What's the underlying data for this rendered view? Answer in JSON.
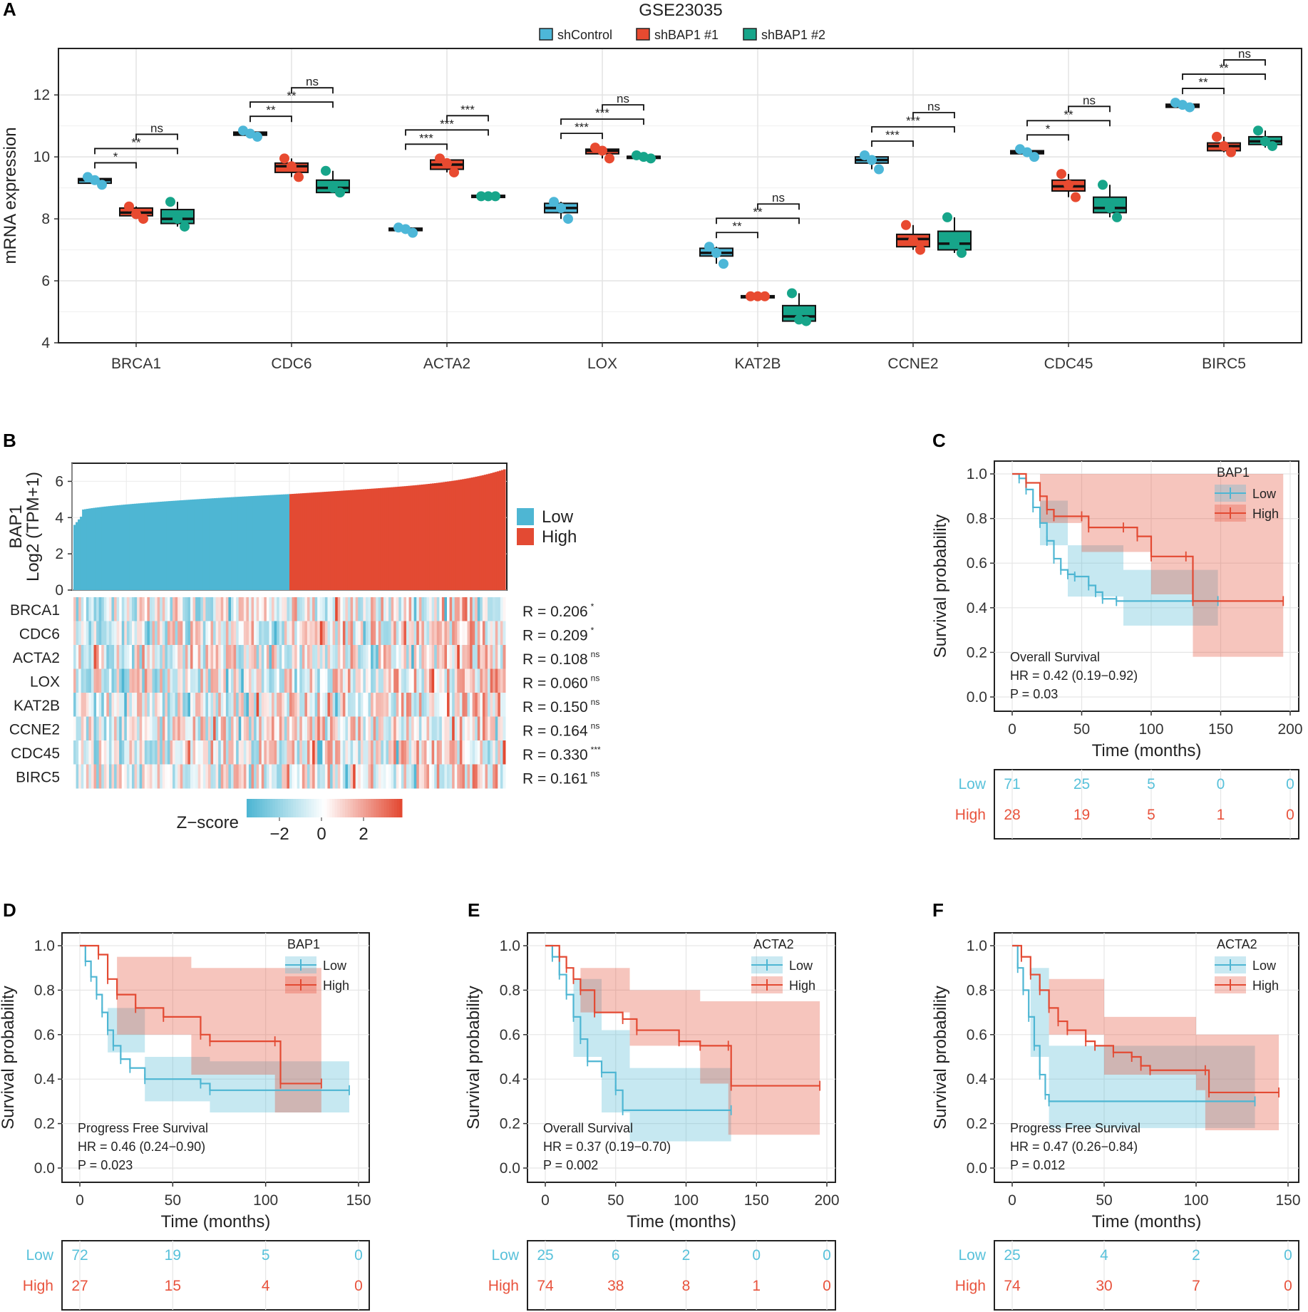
{
  "colors": {
    "low": "#4eb6d3",
    "low_fill": "#bfe4ee",
    "high": "#e34a33",
    "high_fill": "#f4b3a7",
    "shControl": "#4db7d8",
    "shBAP1_1": "#e84a30",
    "shBAP1_2": "#17a58a"
  },
  "panel_labels": [
    "A",
    "B",
    "C",
    "D",
    "E",
    "F"
  ],
  "chart_data": [
    {
      "panel": "A",
      "type": "box",
      "title": "GSE23035",
      "legend": [
        "shControl",
        "shBAP1 #1",
        "shBAP1 #2"
      ],
      "ylabel": "mRNA expression",
      "ylim": [
        4,
        13.5
      ],
      "yticks": [
        4,
        6,
        8,
        10,
        12
      ],
      "genes": [
        {
          "name": "BRCA1",
          "groups": [
            {
              "q1": 9.15,
              "med": 9.25,
              "q3": 9.3,
              "min": 9.1,
              "max": 9.35,
              "pts": [
                9.35,
                9.25,
                9.1
              ]
            },
            {
              "q1": 8.1,
              "med": 8.2,
              "q3": 8.35,
              "min": 8.0,
              "max": 8.4,
              "pts": [
                8.4,
                8.15,
                8.0
              ]
            },
            {
              "q1": 7.85,
              "med": 8.0,
              "q3": 8.3,
              "min": 7.75,
              "max": 8.55,
              "pts": [
                8.55,
                8.0,
                7.75
              ]
            }
          ],
          "sig": [
            "*",
            "**",
            "ns"
          ]
        },
        {
          "name": "CDC6",
          "groups": [
            {
              "q1": 10.7,
              "med": 10.75,
              "q3": 10.8,
              "min": 10.65,
              "max": 10.85,
              "pts": [
                10.85,
                10.75,
                10.65
              ]
            },
            {
              "q1": 9.5,
              "med": 9.7,
              "q3": 9.8,
              "min": 9.35,
              "max": 9.95,
              "pts": [
                9.95,
                9.7,
                9.35
              ]
            },
            {
              "q1": 8.85,
              "med": 9.0,
              "q3": 9.25,
              "min": 8.85,
              "max": 9.55,
              "pts": [
                9.55,
                9.0,
                8.85
              ]
            }
          ],
          "sig": [
            "**",
            "**",
            "ns"
          ]
        },
        {
          "name": "ACTA2",
          "groups": [
            {
              "q1": 7.62,
              "med": 7.67,
              "q3": 7.7,
              "min": 7.55,
              "max": 7.72,
              "pts": [
                7.72,
                7.67,
                7.55
              ]
            },
            {
              "q1": 9.6,
              "med": 9.75,
              "q3": 9.9,
              "min": 9.5,
              "max": 9.95,
              "pts": [
                9.95,
                9.8,
                9.5
              ]
            },
            {
              "q1": 8.7,
              "med": 8.73,
              "q3": 8.76,
              "min": 8.7,
              "max": 8.76,
              "pts": [
                8.73,
                8.73,
                8.73
              ]
            }
          ],
          "sig": [
            "***",
            "***",
            "***"
          ]
        },
        {
          "name": "LOX",
          "groups": [
            {
              "q1": 8.2,
              "med": 8.35,
              "q3": 8.5,
              "min": 8.0,
              "max": 8.55,
              "pts": [
                8.55,
                8.35,
                8.0
              ]
            },
            {
              "q1": 10.1,
              "med": 10.2,
              "q3": 10.25,
              "min": 9.95,
              "max": 10.3,
              "pts": [
                10.3,
                10.2,
                9.95
              ]
            },
            {
              "q1": 9.95,
              "med": 10.0,
              "q3": 10.02,
              "min": 9.95,
              "max": 10.05,
              "pts": [
                10.05,
                10.0,
                9.95
              ]
            }
          ],
          "sig": [
            "***",
            "***",
            "ns"
          ]
        },
        {
          "name": "KAT2B",
          "groups": [
            {
              "q1": 6.8,
              "med": 6.9,
              "q3": 7.05,
              "min": 6.55,
              "max": 7.1,
              "pts": [
                7.1,
                6.9,
                6.55
              ]
            },
            {
              "q1": 5.48,
              "med": 5.5,
              "q3": 5.52,
              "min": 5.48,
              "max": 5.52,
              "pts": [
                5.5,
                5.5,
                5.5
              ]
            },
            {
              "q1": 4.7,
              "med": 4.85,
              "q3": 5.2,
              "min": 4.7,
              "max": 5.6,
              "pts": [
                5.6,
                4.75,
                4.7
              ]
            }
          ],
          "sig": [
            "**",
            "**",
            "ns"
          ]
        },
        {
          "name": "CCNE2",
          "groups": [
            {
              "q1": 9.8,
              "med": 9.9,
              "q3": 10.0,
              "min": 9.6,
              "max": 10.05,
              "pts": [
                10.05,
                9.9,
                9.6
              ]
            },
            {
              "q1": 7.1,
              "med": 7.35,
              "q3": 7.5,
              "min": 7.0,
              "max": 7.8,
              "pts": [
                7.8,
                7.3,
                7.0
              ]
            },
            {
              "q1": 7.0,
              "med": 7.2,
              "q3": 7.6,
              "min": 6.9,
              "max": 8.05,
              "pts": [
                8.05,
                7.2,
                6.9
              ]
            }
          ],
          "sig": [
            "***",
            "***",
            "ns"
          ]
        },
        {
          "name": "CDC45",
          "groups": [
            {
              "q1": 10.1,
              "med": 10.15,
              "q3": 10.2,
              "min": 10.0,
              "max": 10.25,
              "pts": [
                10.25,
                10.15,
                10.0
              ]
            },
            {
              "q1": 8.9,
              "med": 9.05,
              "q3": 9.25,
              "min": 8.7,
              "max": 9.45,
              "pts": [
                9.45,
                9.1,
                8.7
              ]
            },
            {
              "q1": 8.2,
              "med": 8.35,
              "q3": 8.7,
              "min": 8.05,
              "max": 9.1,
              "pts": [
                9.1,
                8.35,
                8.05
              ]
            }
          ],
          "sig": [
            "*",
            "**",
            "ns"
          ]
        },
        {
          "name": "BIRC5",
          "groups": [
            {
              "q1": 11.6,
              "med": 11.65,
              "q3": 11.7,
              "min": 11.6,
              "max": 11.75,
              "pts": [
                11.75,
                11.68,
                11.6
              ]
            },
            {
              "q1": 10.2,
              "med": 10.35,
              "q3": 10.45,
              "min": 10.15,
              "max": 10.65,
              "pts": [
                10.65,
                10.35,
                10.15
              ]
            },
            {
              "q1": 10.4,
              "med": 10.5,
              "q3": 10.65,
              "min": 10.3,
              "max": 10.85,
              "pts": [
                10.85,
                10.5,
                10.35
              ]
            }
          ],
          "sig": [
            "**",
            "**",
            "ns"
          ]
        }
      ]
    },
    {
      "panel": "B",
      "type": "bar+heatmap",
      "ylabel_line1": "BAP1",
      "ylabel_line2": "Log2 (TPM+1)",
      "ylim": [
        0,
        7
      ],
      "yticks": [
        0,
        2,
        4,
        6
      ],
      "legend": [
        "Low",
        "High"
      ],
      "low_range": [
        3.6,
        5.3
      ],
      "high_range": [
        5.3,
        6.7
      ],
      "genes": [
        "BRCA1",
        "CDC6",
        "ACTA2",
        "LOX",
        "KAT2B",
        "CCNE2",
        "CDC45",
        "BIRC5"
      ],
      "correlations": [
        "R = 0.206",
        "R = 0.209",
        "R = 0.108",
        "R = 0.060",
        "R = 0.150",
        "R = 0.164",
        "R = 0.330",
        "R = 0.161"
      ],
      "sig": [
        "*",
        "*",
        "ns",
        "ns",
        "ns",
        "ns",
        "***",
        "ns"
      ],
      "colorbar_title": "Z−score",
      "colorbar_ticks": [
        "−2",
        "0",
        "2"
      ]
    }
  ],
  "km_plots": [
    {
      "panel": "C",
      "strata": "BAP1",
      "survival_type": "Overall Survival",
      "hr": "HR = 0.42 (0.19−0.92)",
      "p": "P = 0.03",
      "xmax": 200,
      "xticks": [
        0,
        50,
        100,
        150,
        200
      ],
      "xlabel": "Time (months)",
      "ylabel": "Survival probability",
      "risk_low": [
        "71",
        "25",
        "5",
        "0",
        "0"
      ],
      "risk_high": [
        "28",
        "19",
        "5",
        "1",
        "0"
      ],
      "low": [
        [
          0,
          1
        ],
        [
          5,
          0.98
        ],
        [
          10,
          0.93
        ],
        [
          15,
          0.85
        ],
        [
          20,
          0.78
        ],
        [
          25,
          0.7
        ],
        [
          30,
          0.62
        ],
        [
          35,
          0.57
        ],
        [
          40,
          0.55
        ],
        [
          45,
          0.54
        ],
        [
          55,
          0.5
        ],
        [
          60,
          0.47
        ],
        [
          65,
          0.44
        ],
        [
          75,
          0.43
        ],
        [
          148,
          0.43
        ]
      ],
      "high": [
        [
          0,
          1
        ],
        [
          10,
          0.96
        ],
        [
          20,
          0.9
        ],
        [
          25,
          0.84
        ],
        [
          30,
          0.81
        ],
        [
          50,
          0.81
        ],
        [
          55,
          0.76
        ],
        [
          80,
          0.76
        ],
        [
          90,
          0.72
        ],
        [
          100,
          0.63
        ],
        [
          125,
          0.63
        ],
        [
          130,
          0.43
        ],
        [
          195,
          0.43
        ]
      ],
      "low_ci": [
        [
          0,
          1,
          1
        ],
        [
          20,
          0.88,
          0.68
        ],
        [
          40,
          0.68,
          0.45
        ],
        [
          80,
          0.57,
          0.32
        ],
        [
          148,
          0.57,
          0.32
        ]
      ],
      "high_ci": [
        [
          0,
          1,
          1
        ],
        [
          20,
          1,
          0.78
        ],
        [
          50,
          1,
          0.65
        ],
        [
          100,
          1,
          0.46
        ],
        [
          130,
          1,
          0.18
        ],
        [
          195,
          1,
          0.18
        ]
      ]
    },
    {
      "panel": "D",
      "strata": "BAP1",
      "survival_type": "Progress Free Survival",
      "hr": "HR = 0.46 (0.24−0.90)",
      "p": "P = 0.023",
      "xmax": 150,
      "xticks": [
        0,
        50,
        100,
        150
      ],
      "xlabel": "Time (months)",
      "ylabel": "Survival probability",
      "risk_low": [
        "72",
        "19",
        "5",
        "0"
      ],
      "risk_high": [
        "27",
        "15",
        "4",
        "0"
      ],
      "low": [
        [
          0,
          1
        ],
        [
          3,
          0.93
        ],
        [
          6,
          0.86
        ],
        [
          9,
          0.78
        ],
        [
          12,
          0.7
        ],
        [
          15,
          0.62
        ],
        [
          18,
          0.55
        ],
        [
          22,
          0.49
        ],
        [
          27,
          0.45
        ],
        [
          35,
          0.4
        ],
        [
          65,
          0.38
        ],
        [
          70,
          0.35
        ],
        [
          145,
          0.35
        ]
      ],
      "high": [
        [
          0,
          1
        ],
        [
          10,
          0.96
        ],
        [
          15,
          0.85
        ],
        [
          20,
          0.78
        ],
        [
          30,
          0.72
        ],
        [
          45,
          0.68
        ],
        [
          65,
          0.6
        ],
        [
          70,
          0.57
        ],
        [
          105,
          0.57
        ],
        [
          108,
          0.38
        ],
        [
          130,
          0.38
        ]
      ],
      "low_ci": [
        [
          0,
          1,
          1
        ],
        [
          15,
          0.72,
          0.52
        ],
        [
          35,
          0.5,
          0.3
        ],
        [
          70,
          0.48,
          0.25
        ],
        [
          145,
          0.5,
          0.25
        ]
      ],
      "high_ci": [
        [
          0,
          1,
          1
        ],
        [
          20,
          0.95,
          0.6
        ],
        [
          60,
          0.9,
          0.42
        ],
        [
          105,
          0.9,
          0.25
        ],
        [
          130,
          1,
          0.16
        ]
      ]
    },
    {
      "panel": "E",
      "strata": "ACTA2",
      "survival_type": "Overall Survival",
      "hr": "HR = 0.37 (0.19−0.70)",
      "p": "P = 0.002",
      "xmax": 200,
      "xticks": [
        0,
        50,
        100,
        150,
        200
      ],
      "xlabel": "Time (months)",
      "ylabel": "Survival probability",
      "risk_low": [
        "25",
        "6",
        "2",
        "0",
        "0"
      ],
      "risk_high": [
        "74",
        "38",
        "8",
        "1",
        "0"
      ],
      "low": [
        [
          0,
          1
        ],
        [
          5,
          0.95
        ],
        [
          10,
          0.87
        ],
        [
          15,
          0.78
        ],
        [
          20,
          0.68
        ],
        [
          25,
          0.58
        ],
        [
          30,
          0.48
        ],
        [
          40,
          0.43
        ],
        [
          50,
          0.35
        ],
        [
          55,
          0.26
        ],
        [
          132,
          0.26
        ]
      ],
      "high": [
        [
          0,
          1
        ],
        [
          10,
          0.95
        ],
        [
          15,
          0.9
        ],
        [
          20,
          0.85
        ],
        [
          25,
          0.8
        ],
        [
          35,
          0.7
        ],
        [
          55,
          0.67
        ],
        [
          65,
          0.62
        ],
        [
          95,
          0.57
        ],
        [
          110,
          0.55
        ],
        [
          130,
          0.55
        ],
        [
          132,
          0.37
        ],
        [
          195,
          0.37
        ]
      ],
      "low_ci": [
        [
          0,
          1,
          1
        ],
        [
          20,
          0.85,
          0.5
        ],
        [
          40,
          0.62,
          0.25
        ],
        [
          60,
          0.45,
          0.12
        ],
        [
          132,
          0.45,
          0.12
        ]
      ],
      "high_ci": [
        [
          0,
          1,
          1
        ],
        [
          25,
          0.9,
          0.7
        ],
        [
          60,
          0.8,
          0.55
        ],
        [
          110,
          0.75,
          0.38
        ],
        [
          130,
          0.75,
          0.15
        ],
        [
          195,
          1,
          0.15
        ]
      ]
    },
    {
      "panel": "F",
      "strata": "ACTA2",
      "survival_type": "Progress Free Survival",
      "hr": "HR = 0.47 (0.26−0.84)",
      "p": "P = 0.012",
      "xmax": 150,
      "xticks": [
        0,
        50,
        100,
        150
      ],
      "xlabel": "Time (months)",
      "ylabel": "Survival probability",
      "risk_low": [
        "25",
        "4",
        "2",
        "0"
      ],
      "risk_high": [
        "74",
        "30",
        "7",
        "0"
      ],
      "low": [
        [
          0,
          1
        ],
        [
          3,
          0.9
        ],
        [
          6,
          0.8
        ],
        [
          9,
          0.68
        ],
        [
          12,
          0.55
        ],
        [
          15,
          0.42
        ],
        [
          18,
          0.33
        ],
        [
          20,
          0.3
        ],
        [
          132,
          0.3
        ]
      ],
      "high": [
        [
          0,
          1
        ],
        [
          5,
          0.95
        ],
        [
          10,
          0.87
        ],
        [
          15,
          0.8
        ],
        [
          20,
          0.72
        ],
        [
          25,
          0.66
        ],
        [
          30,
          0.62
        ],
        [
          40,
          0.57
        ],
        [
          45,
          0.55
        ],
        [
          55,
          0.52
        ],
        [
          65,
          0.5
        ],
        [
          70,
          0.46
        ],
        [
          75,
          0.44
        ],
        [
          105,
          0.44
        ],
        [
          107,
          0.34
        ],
        [
          145,
          0.34
        ]
      ],
      "low_ci": [
        [
          0,
          1,
          1
        ],
        [
          10,
          0.9,
          0.5
        ],
        [
          20,
          0.55,
          0.18
        ],
        [
          132,
          0.58,
          0.18
        ]
      ],
      "high_ci": [
        [
          0,
          1,
          1
        ],
        [
          20,
          0.85,
          0.6
        ],
        [
          50,
          0.68,
          0.42
        ],
        [
          100,
          0.6,
          0.35
        ],
        [
          105,
          0.6,
          0.17
        ],
        [
          145,
          0.65,
          0.17
        ]
      ]
    }
  ]
}
